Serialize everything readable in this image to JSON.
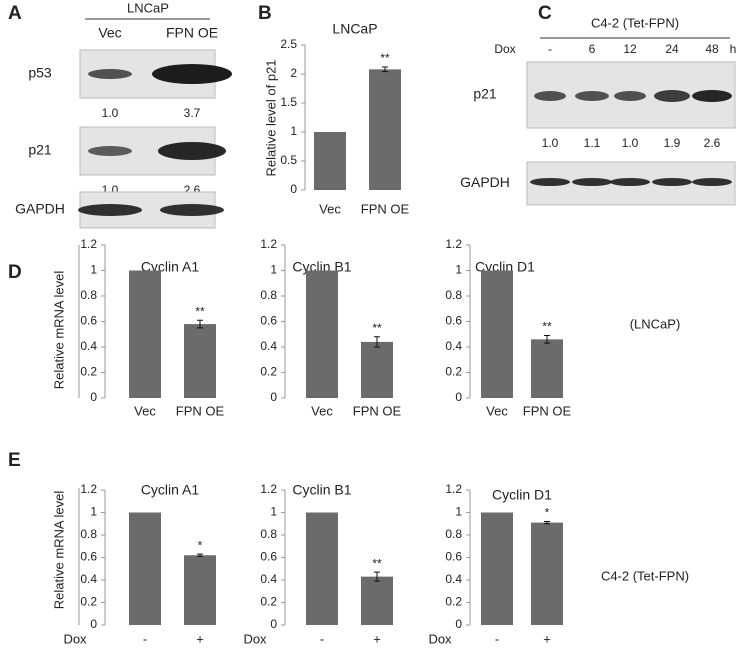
{
  "panel_labels": [
    "A",
    "B",
    "C",
    "D",
    "E"
  ],
  "blots": [
    {
      "group": "LNCaP",
      "lanes": [
        "Vec",
        "FPN OE"
      ],
      "bands": [
        {
          "name": "p53",
          "quant": [
            "1.0",
            "3.7"
          ]
        },
        {
          "name": "p21",
          "quant": [
            "1.0",
            "2.6"
          ]
        },
        {
          "name": "GAPDH"
        }
      ]
    },
    {
      "group": "C4-2 (Tet-FPN)",
      "lane_title": "Dox",
      "lanes": [
        "-",
        "6",
        "12",
        "24",
        "48"
      ],
      "unit": "h",
      "bands": [
        {
          "name": "p21",
          "quant": [
            "1.0",
            "1.1",
            "1.0",
            "1.9",
            "2.6"
          ]
        },
        {
          "name": "GAPDH"
        }
      ]
    }
  ],
  "row_notes": [
    "(LNCaP)",
    "C4-2 (Tet-FPN)"
  ],
  "chart_data": [
    {
      "type": "bar",
      "title": "LNCaP",
      "ylabel": "Relative level of p21",
      "categories": [
        "Vec",
        "FPN OE"
      ],
      "series": [
        {
          "color": "#6b6b6b",
          "values": [
            1,
            2.08
          ],
          "errors": [
            null,
            0.04
          ],
          "annotations": [
            null,
            "**"
          ]
        }
      ],
      "ylim": [
        0,
        2.5
      ],
      "yticks": [
        0,
        0.5,
        1,
        1.5,
        2,
        2.5
      ]
    },
    {
      "type": "bar",
      "title": "Cyclin A1",
      "ylabel": "Relative mRNA level",
      "categories": [
        "Vec",
        "FPN OE"
      ],
      "series": [
        {
          "color": "#6b6b6b",
          "values": [
            1,
            0.58
          ],
          "errors": [
            null,
            0.03
          ],
          "annotations": [
            null,
            "**"
          ]
        }
      ],
      "ylim": [
        0,
        1.2
      ],
      "yticks": [
        0,
        0.2,
        0.4,
        0.6,
        0.8,
        1,
        1.2
      ]
    },
    {
      "type": "bar",
      "title": "Cyclin B1",
      "categories": [
        "Vec",
        "FPN OE"
      ],
      "series": [
        {
          "color": "#6b6b6b",
          "values": [
            1,
            0.44
          ],
          "errors": [
            null,
            0.04
          ],
          "annotations": [
            null,
            "**"
          ]
        }
      ],
      "ylim": [
        0,
        1.2
      ],
      "yticks": [
        0,
        0.2,
        0.4,
        0.6,
        0.8,
        1,
        1.2
      ]
    },
    {
      "type": "bar",
      "title": "Cyclin D1",
      "categories": [
        "Vec",
        "FPN OE"
      ],
      "series": [
        {
          "color": "#6b6b6b",
          "values": [
            1,
            0.46
          ],
          "errors": [
            null,
            0.03
          ],
          "annotations": [
            null,
            "**"
          ]
        }
      ],
      "ylim": [
        0,
        1.2
      ],
      "yticks": [
        0,
        0.2,
        0.4,
        0.6,
        0.8,
        1,
        1.2
      ]
    },
    {
      "type": "bar",
      "title": "Cyclin A1",
      "ylabel": "Relative mRNA level",
      "xlabel": "Dox",
      "categories": [
        "-",
        "+"
      ],
      "series": [
        {
          "color": "#6b6b6b",
          "values": [
            1,
            0.62
          ],
          "errors": [
            null,
            0.01
          ],
          "annotations": [
            null,
            "*"
          ]
        }
      ],
      "ylim": [
        0,
        1.2
      ],
      "yticks": [
        0,
        0.2,
        0.4,
        0.6,
        0.8,
        1,
        1.2
      ]
    },
    {
      "type": "bar",
      "title": "Cyclin B1",
      "xlabel": "Dox",
      "categories": [
        "-",
        "+"
      ],
      "series": [
        {
          "color": "#6b6b6b",
          "values": [
            1,
            0.43
          ],
          "errors": [
            null,
            0.04
          ],
          "annotations": [
            null,
            "**"
          ]
        }
      ],
      "ylim": [
        0,
        1.2
      ],
      "yticks": [
        0,
        0.2,
        0.4,
        0.6,
        0.8,
        1,
        1.2
      ]
    },
    {
      "type": "bar",
      "title": "Cyclin D1",
      "xlabel": "Dox",
      "categories": [
        "-",
        "+"
      ],
      "series": [
        {
          "color": "#6b6b6b",
          "values": [
            1,
            0.91
          ],
          "errors": [
            null,
            0.01
          ],
          "annotations": [
            null,
            "*"
          ]
        }
      ],
      "ylim": [
        0,
        1.2
      ],
      "yticks": [
        0,
        0.2,
        0.4,
        0.6,
        0.8,
        1,
        1.2
      ]
    }
  ]
}
